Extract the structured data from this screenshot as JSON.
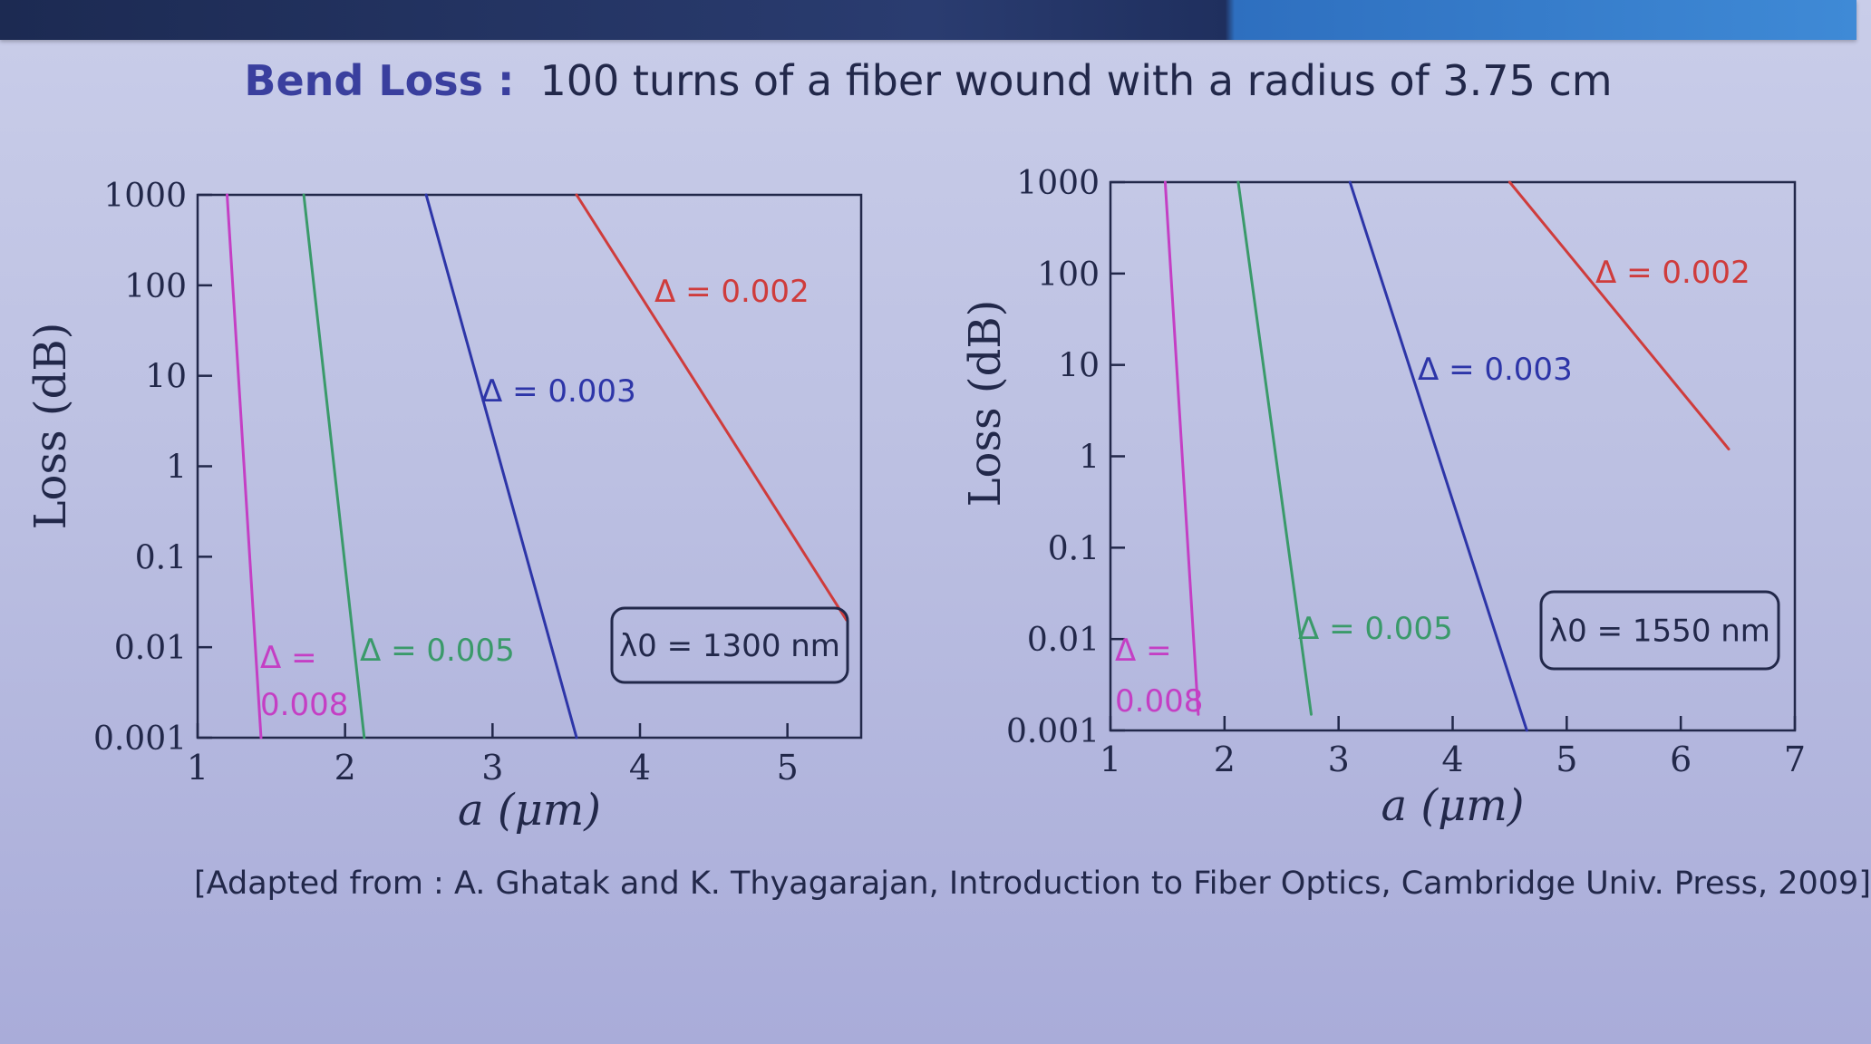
{
  "title": {
    "key": "Bend Loss :",
    "text": "100 turns of a fiber wound with a radius of 3.75 cm"
  },
  "citation": "[Adapted from : A. Ghatak and K. Thyagarajan, Introduction to Fiber Optics, Cambridge Univ. Press, 2009]",
  "colors": {
    "magenta": "#c43fc4",
    "green": "#3a9a6a",
    "blue": "#2d35a8",
    "red": "#cf3c3c",
    "axis": "#22284a"
  },
  "chart_data": [
    {
      "type": "line",
      "xlabel": "a (μm)",
      "ylabel": "Loss (dB)",
      "y_scale": "log",
      "xlim": [
        1,
        5.5
      ],
      "ylim": [
        0.001,
        1000
      ],
      "x_ticks": [
        "1",
        "2",
        "3",
        "4",
        "5"
      ],
      "y_ticks": [
        "0.001",
        "0.01",
        "0.1",
        "1",
        "10",
        "100",
        "1000"
      ],
      "annotation": "λ0 = 1300 nm",
      "series": [
        {
          "name": "Δ = 0.008",
          "color": "#c43fc4",
          "points": [
            [
              1.2,
              1000
            ],
            [
              1.43,
              0.001
            ]
          ]
        },
        {
          "name": "Δ = 0.005",
          "color": "#3a9a6a",
          "points": [
            [
              1.72,
              1000
            ],
            [
              2.13,
              0.001
            ]
          ]
        },
        {
          "name": "Δ = 0.003",
          "color": "#2d35a8",
          "points": [
            [
              2.55,
              1000
            ],
            [
              3.57,
              0.001
            ]
          ]
        },
        {
          "name": "Δ = 0.002",
          "color": "#cf3c3c",
          "points": [
            [
              3.57,
              1000
            ],
            [
              5.4,
              0.02
            ]
          ]
        }
      ]
    },
    {
      "type": "line",
      "xlabel": "a (μm)",
      "ylabel": "Loss (dB)",
      "y_scale": "log",
      "xlim": [
        1,
        7
      ],
      "ylim": [
        0.001,
        1000
      ],
      "x_ticks": [
        "1",
        "2",
        "3",
        "4",
        "5",
        "6",
        "7"
      ],
      "y_ticks": [
        "0.001",
        "0.01",
        "0.1",
        "1",
        "10",
        "100",
        "1000"
      ],
      "annotation": "λ0 = 1550 nm",
      "series": [
        {
          "name": "Δ = 0.008",
          "color": "#c43fc4",
          "points": [
            [
              1.48,
              1000
            ],
            [
              1.77,
              0.0015
            ]
          ]
        },
        {
          "name": "Δ = 0.005",
          "color": "#3a9a6a",
          "points": [
            [
              2.12,
              1000
            ],
            [
              2.76,
              0.0015
            ]
          ]
        },
        {
          "name": "Δ = 0.003",
          "color": "#2d35a8",
          "points": [
            [
              3.1,
              1000
            ],
            [
              4.65,
              0.001
            ]
          ]
        },
        {
          "name": "Δ = 0.002",
          "color": "#cf3c3c",
          "points": [
            [
              4.5,
              1000
            ],
            [
              6.42,
              1.2
            ]
          ]
        }
      ]
    }
  ]
}
